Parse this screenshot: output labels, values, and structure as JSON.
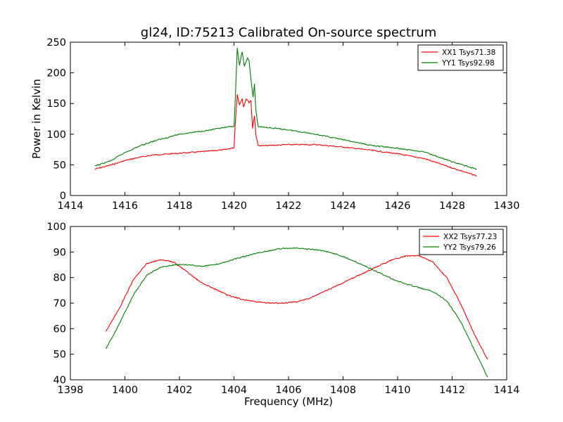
{
  "chart_data": [
    {
      "type": "line",
      "title": "gl24, ID:75213 Calibrated On-source spectrum",
      "xlabel": "",
      "ylabel": "Power in Kelvin",
      "xlim": [
        1414,
        1430
      ],
      "ylim": [
        0,
        250
      ],
      "xticks": [
        1414,
        1416,
        1418,
        1420,
        1422,
        1424,
        1426,
        1428,
        1430
      ],
      "yticks": [
        0,
        50,
        100,
        150,
        200,
        250
      ],
      "legend_position": "top-right",
      "series": [
        {
          "name": "XX1 Tsys71.38",
          "color": "#ff0000",
          "points": [
            [
              1414.9,
              43
            ],
            [
              1415.5,
              50
            ],
            [
              1416,
              57
            ],
            [
              1416.5,
              62
            ],
            [
              1417,
              66
            ],
            [
              1418,
              69
            ],
            [
              1419,
              72
            ],
            [
              1419.7,
              75
            ],
            [
              1420,
              78
            ],
            [
              1420.05,
              120
            ],
            [
              1420.12,
              165
            ],
            [
              1420.2,
              148
            ],
            [
              1420.3,
              158
            ],
            [
              1420.35,
              145
            ],
            [
              1420.45,
              158
            ],
            [
              1420.55,
              152
            ],
            [
              1420.62,
              155
            ],
            [
              1420.68,
              110
            ],
            [
              1420.75,
              130
            ],
            [
              1420.8,
              100
            ],
            [
              1420.88,
              82
            ],
            [
              1421,
              81
            ],
            [
              1422,
              83
            ],
            [
              1423,
              83
            ],
            [
              1424,
              79
            ],
            [
              1425,
              74
            ],
            [
              1426,
              68
            ],
            [
              1427,
              60
            ],
            [
              1428,
              45
            ],
            [
              1428.9,
              32
            ]
          ]
        },
        {
          "name": "YY1 Tsys92.98",
          "color": "#008000",
          "points": [
            [
              1414.9,
              48
            ],
            [
              1415.5,
              57
            ],
            [
              1416,
              70
            ],
            [
              1416.5,
              80
            ],
            [
              1417,
              88
            ],
            [
              1418,
              100
            ],
            [
              1419,
              106
            ],
            [
              1419.7,
              111
            ],
            [
              1420,
              113
            ],
            [
              1420.05,
              160
            ],
            [
              1420.12,
              240
            ],
            [
              1420.2,
              212
            ],
            [
              1420.3,
              235
            ],
            [
              1420.38,
              210
            ],
            [
              1420.5,
              225
            ],
            [
              1420.55,
              220
            ],
            [
              1420.62,
              190
            ],
            [
              1420.7,
              160
            ],
            [
              1420.75,
              182
            ],
            [
              1420.8,
              140
            ],
            [
              1420.88,
              113
            ],
            [
              1421,
              112
            ],
            [
              1422,
              107
            ],
            [
              1423,
              100
            ],
            [
              1424,
              91
            ],
            [
              1425,
              82
            ],
            [
              1426,
              77
            ],
            [
              1427,
              71
            ],
            [
              1428,
              55
            ],
            [
              1428.9,
              43
            ]
          ]
        }
      ]
    },
    {
      "type": "line",
      "title": "",
      "xlabel": "Frequency (MHz)",
      "ylabel": "",
      "xlim": [
        1398,
        1414
      ],
      "ylim": [
        40,
        100
      ],
      "xticks": [
        1398,
        1400,
        1402,
        1404,
        1406,
        1408,
        1410,
        1412,
        1414
      ],
      "yticks": [
        40,
        50,
        60,
        70,
        80,
        90,
        100
      ],
      "legend_position": "top-right",
      "series": [
        {
          "name": "XX2 Tsys77.23",
          "color": "#ff0000",
          "points": [
            [
              1399.3,
              59
            ],
            [
              1399.8,
              68
            ],
            [
              1400.3,
              79
            ],
            [
              1400.8,
              85.5
            ],
            [
              1401.3,
              87
            ],
            [
              1401.8,
              86
            ],
            [
              1402.3,
              82
            ],
            [
              1402.8,
              78
            ],
            [
              1403.3,
              75.5
            ],
            [
              1403.8,
              73
            ],
            [
              1404.3,
              71.5
            ],
            [
              1404.8,
              70.5
            ],
            [
              1405.3,
              70
            ],
            [
              1405.8,
              70
            ],
            [
              1406.3,
              70.5
            ],
            [
              1406.8,
              72
            ],
            [
              1407.3,
              74.5
            ],
            [
              1407.8,
              77
            ],
            [
              1408.3,
              79.5
            ],
            [
              1408.8,
              82
            ],
            [
              1409.3,
              84.5
            ],
            [
              1409.8,
              87
            ],
            [
              1410.3,
              88.5
            ],
            [
              1410.8,
              88.5
            ],
            [
              1411.3,
              86
            ],
            [
              1411.8,
              80
            ],
            [
              1412.3,
              70
            ],
            [
              1412.8,
              58
            ],
            [
              1413.3,
              48
            ]
          ]
        },
        {
          "name": "YY2 Tsys79.26",
          "color": "#008000",
          "points": [
            [
              1399.3,
              52
            ],
            [
              1399.8,
              62
            ],
            [
              1400.3,
              73
            ],
            [
              1400.8,
              81
            ],
            [
              1401.3,
              84
            ],
            [
              1401.8,
              85
            ],
            [
              1402.3,
              85
            ],
            [
              1402.8,
              84.5
            ],
            [
              1403.3,
              85
            ],
            [
              1403.8,
              86.5
            ],
            [
              1404.3,
              88
            ],
            [
              1404.8,
              89.5
            ],
            [
              1405.3,
              90.5
            ],
            [
              1405.8,
              91.5
            ],
            [
              1406.3,
              91.5
            ],
            [
              1406.8,
              91
            ],
            [
              1407.3,
              90.5
            ],
            [
              1407.8,
              89
            ],
            [
              1408.3,
              87
            ],
            [
              1408.8,
              84.5
            ],
            [
              1409.3,
              82
            ],
            [
              1409.8,
              79.5
            ],
            [
              1410.3,
              77.5
            ],
            [
              1410.8,
              76
            ],
            [
              1411.3,
              74.5
            ],
            [
              1411.8,
              71
            ],
            [
              1412.3,
              63
            ],
            [
              1412.8,
              52
            ],
            [
              1413.3,
              41
            ]
          ]
        }
      ]
    }
  ]
}
